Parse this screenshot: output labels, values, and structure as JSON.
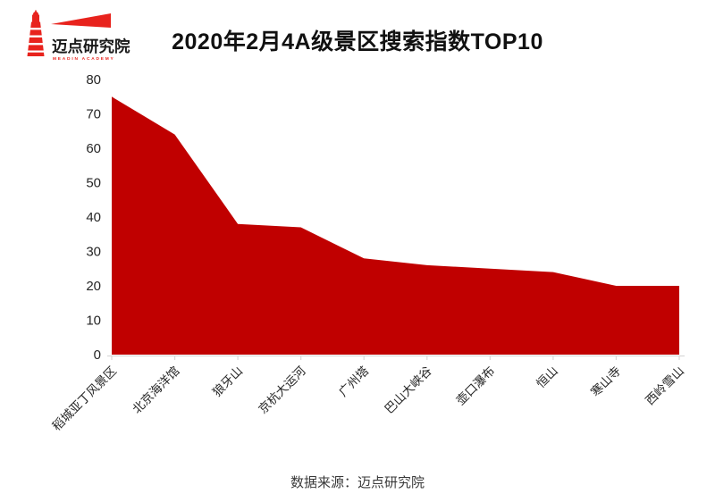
{
  "header": {
    "logo": {
      "brand": "迈点研究院",
      "brand_sub": "MEADIN ACADEMY"
    },
    "title": "2020年2月4A级景区搜索指数TOP10"
  },
  "footer": {
    "source": "数据来源：迈点研究院"
  },
  "colors": {
    "area_red": "#c00000",
    "logo_red": "#e8231d",
    "axis_gray": "#d9d9d9",
    "tick_text": "#262626"
  },
  "chart_data": {
    "type": "area",
    "title": "2020年2月4A级景区搜索指数TOP10",
    "categories": [
      "稻城亚丁风景区",
      "北京海洋馆",
      "狼牙山",
      "京杭大运河",
      "广州塔",
      "巴山大峡谷",
      "壶口瀑布",
      "恒山",
      "寒山寺",
      "西岭雪山"
    ],
    "values": [
      75,
      64,
      38,
      37,
      28,
      26,
      25,
      24,
      20,
      20
    ],
    "xlabel": "",
    "ylabel": "",
    "ylim": [
      0,
      80
    ],
    "ytick_step": 10,
    "ytick_labels": [
      "0",
      "10",
      "20",
      "30",
      "40",
      "50",
      "60",
      "70",
      "80"
    ],
    "grid": false,
    "legend": false,
    "fill_color": "#c00000",
    "source": "数据来源：迈点研究院"
  }
}
